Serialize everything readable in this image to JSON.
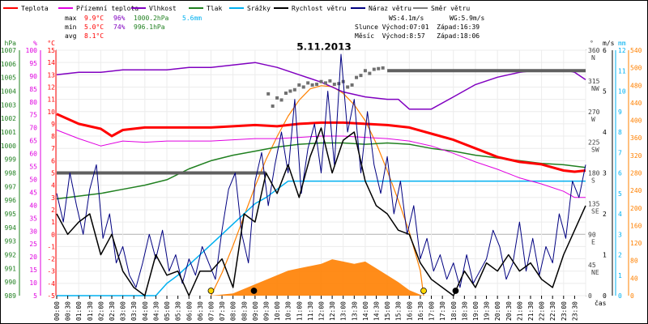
{
  "chart_data": {
    "type": "line",
    "title": "5.11.2013",
    "xlabel": "čas",
    "legend": [
      {
        "name": "Teplota",
        "color": "#ff0000"
      },
      {
        "name": "Přízemní teplota",
        "color": "#e000e0"
      },
      {
        "name": "Vlhkost",
        "color": "#8000c0"
      },
      {
        "name": "Tlak",
        "color": "#208020"
      },
      {
        "name": "Srážky",
        "color": "#00b0f0"
      },
      {
        "name": "Rychlost větru",
        "color": "#000000"
      },
      {
        "name": "Náraz větru",
        "color": "#000080"
      },
      {
        "name": "Směr větru",
        "color": "#808080"
      }
    ],
    "stats": {
      "rows": [
        {
          "label": "max",
          "temp": "9.9°C",
          "hum": "96%",
          "press": "1000.2hPa",
          "rain": "5.6mm"
        },
        {
          "label": "min",
          "temp": "5.0°C",
          "hum": "74%",
          "press": "996.1hPa",
          "rain": ""
        },
        {
          "label": "avg",
          "temp": "8.1°C",
          "hum": "",
          "press": "",
          "rain": ""
        }
      ],
      "wind": "WS:4.1m/s",
      "gust": "WG:5.9m/s",
      "sun": "Slunce Východ:07:01  Západ:16:39",
      "moon": "Měsíc  Východ:8:57   Západ:18:06"
    },
    "axes": {
      "hpa": {
        "label": "hPa",
        "ticks": [
          "1007",
          "1006",
          "1005",
          "1004",
          "1003",
          "1002",
          "1001",
          "1000",
          "999",
          "998",
          "997",
          "996",
          "995",
          "994",
          "993",
          "992",
          "991",
          "990",
          "989"
        ],
        "range": [
          989,
          1007
        ],
        "color": "#208020"
      },
      "pct": {
        "label": "%",
        "ticks": [
          "100",
          "95",
          "90",
          "85",
          "80",
          "75",
          "70",
          "65",
          "60",
          "55",
          "50",
          "45",
          "40",
          "35",
          "30",
          "25",
          "20",
          "15",
          "10",
          "5"
        ],
        "range": [
          0,
          100
        ],
        "color": "#e000e0"
      },
      "temp": {
        "label": "°C",
        "ticks": [
          "15",
          "14",
          "13",
          "12",
          "11",
          "10",
          "9",
          "8",
          "7",
          "6",
          "5",
          "4",
          "3",
          "2",
          "1",
          "0",
          "-1",
          "-2",
          "-3",
          "-4",
          "-5"
        ],
        "range": [
          -5,
          15
        ],
        "color": "#ff0000"
      },
      "dir": {
        "label": "°",
        "ticks": [
          {
            "v": 360,
            "t": "360",
            "d": "N"
          },
          {
            "v": 315,
            "t": "315",
            "d": "NW"
          },
          {
            "v": 270,
            "t": "270",
            "d": "W"
          },
          {
            "v": 225,
            "t": "225",
            "d": "SW"
          },
          {
            "v": 180,
            "t": "180",
            "d": "S"
          },
          {
            "v": 135,
            "t": "135",
            "d": "SE"
          },
          {
            "v": 90,
            "t": "90",
            "d": "E"
          },
          {
            "v": 45,
            "t": "45",
            "d": "NE"
          },
          {
            "v": 0,
            "t": "0",
            "d": ""
          }
        ],
        "range": [
          0,
          360
        ],
        "color": "#404040"
      },
      "wind": {
        "label": "m/s",
        "ticks": [
          "6",
          "5",
          "4",
          "3",
          "2",
          "1",
          "0"
        ],
        "range": [
          0,
          6
        ],
        "color": "#000000"
      },
      "rain": {
        "label": "mm",
        "ticks": [
          "12",
          "11",
          "10",
          "9",
          "8",
          "7",
          "6",
          "5",
          "4",
          "3",
          "2",
          "1",
          "0"
        ],
        "range": [
          0,
          12
        ],
        "color": "#00b0f0"
      },
      "solar": {
        "label": "",
        "ticks": [
          "540",
          "500",
          "480",
          "440",
          "400",
          "360",
          "320",
          "280",
          "240",
          "200",
          "160",
          "120",
          "80",
          "40",
          "0"
        ],
        "range": [
          0,
          540
        ],
        "color": "#ff8000"
      }
    },
    "x_ticks": [
      "00:00",
      "00:30",
      "01:00",
      "01:30",
      "02:00",
      "02:30",
      "03:00",
      "03:30",
      "04:00",
      "04:30",
      "05:00",
      "05:30",
      "06:00",
      "06:30",
      "07:00",
      "07:30",
      "08:00",
      "08:30",
      "09:00",
      "09:30",
      "10:00",
      "10:30",
      "11:00",
      "11:30",
      "12:00",
      "12:30",
      "13:00",
      "13:30",
      "14:00",
      "14:30",
      "15:00",
      "15:30",
      "16:00",
      "16:30",
      "17:00",
      "17:30",
      "18:00",
      "18:30",
      "19:00",
      "19:30",
      "20:00",
      "20:30",
      "21:00",
      "21:30",
      "22:00",
      "22:30",
      "23:00",
      "23:30"
    ],
    "series": {
      "teplota": {
        "x": [
          0,
          1,
          2,
          2.5,
          3,
          4,
          5,
          6,
          7,
          8,
          9,
          10,
          11,
          12,
          13,
          14,
          15,
          16,
          17,
          18,
          19,
          20,
          21,
          22,
          23,
          23.5,
          24
        ],
        "y": [
          9.8,
          9.0,
          8.6,
          8.0,
          8.5,
          8.7,
          8.7,
          8.7,
          8.7,
          8.8,
          8.9,
          8.8,
          9.0,
          9.1,
          9.1,
          9.0,
          8.9,
          8.7,
          8.2,
          7.7,
          7.0,
          6.3,
          5.9,
          5.7,
          5.2,
          5.1,
          5.2
        ]
      },
      "prizemni": {
        "x": [
          0,
          1,
          2,
          3,
          4,
          5,
          6,
          7,
          8,
          9,
          10,
          11,
          12,
          13,
          14,
          15,
          16,
          17,
          18,
          19,
          20,
          21,
          22,
          23,
          23.5,
          24
        ],
        "y": [
          8.5,
          7.8,
          7.2,
          7.6,
          7.5,
          7.6,
          7.6,
          7.6,
          7.7,
          7.8,
          7.8,
          7.9,
          8.0,
          8.0,
          7.9,
          7.8,
          7.6,
          7.2,
          6.6,
          5.9,
          5.3,
          4.6,
          4.1,
          3.5,
          3.0,
          3.0
        ]
      },
      "vlhkost": {
        "x": [
          0,
          1,
          2,
          3,
          4,
          5,
          6,
          7,
          8,
          9,
          10,
          11,
          12,
          13,
          14,
          15,
          15.5,
          16,
          17,
          18,
          19,
          20,
          21,
          22,
          23,
          23.5,
          24
        ],
        "y": [
          90,
          91,
          91,
          92,
          92,
          92,
          93,
          93,
          94,
          95,
          93,
          90,
          87,
          83,
          81,
          80,
          80,
          76,
          76,
          81,
          86,
          89,
          91,
          92,
          92,
          91,
          88
        ]
      },
      "tlak": {
        "x": [
          0,
          1,
          2,
          3,
          4,
          5,
          6,
          7,
          8,
          9,
          10,
          11,
          12,
          13,
          14,
          15,
          16,
          17,
          18,
          19,
          20,
          21,
          22,
          23,
          24
        ],
        "y": [
          996.1,
          996.3,
          996.5,
          996.8,
          997.1,
          997.5,
          998.3,
          998.9,
          999.3,
          999.6,
          999.9,
          1000.1,
          1000.2,
          1000.2,
          1000.1,
          1000.2,
          1000.1,
          999.8,
          999.6,
          999.3,
          999.1,
          998.9,
          998.7,
          998.6,
          998.4
        ]
      },
      "srazky": {
        "x": [
          0,
          4.5,
          5,
          5.5,
          6,
          6.5,
          7,
          7.5,
          8,
          8.5,
          9,
          9.5,
          10,
          10.5,
          11,
          24
        ],
        "y": [
          0,
          0,
          0.6,
          1.0,
          1.5,
          2.0,
          2.5,
          3.0,
          3.5,
          4.0,
          4.5,
          4.8,
          5.2,
          5.6,
          5.6,
          5.6
        ]
      },
      "smer_segments": [
        {
          "x": [
            0,
            9.5
          ],
          "y": [
            180,
            180
          ]
        },
        {
          "x": [
            15,
            24
          ],
          "y": [
            330,
            330
          ]
        }
      ],
      "smer_points": {
        "x": [
          9.6,
          9.8,
          10.0,
          10.2,
          10.4,
          10.6,
          10.8,
          11.0,
          11.2,
          11.4,
          11.6,
          11.8,
          12.0,
          12.2,
          12.4,
          12.6,
          12.8,
          13.0,
          13.2,
          13.4,
          13.6,
          13.8,
          14.0,
          14.2,
          14.4,
          14.6,
          14.8
        ],
        "y": [
          296,
          278,
          290,
          287,
          297,
          300,
          302,
          309,
          306,
          312,
          309,
          310,
          314,
          312,
          315,
          310,
          311,
          314,
          306,
          309,
          320,
          323,
          330,
          326,
          332,
          333,
          334
        ]
      },
      "rychlost": {
        "x": [
          0,
          0.5,
          1,
          1.5,
          2,
          2.5,
          3,
          3.5,
          4,
          4.5,
          5,
          5.5,
          6,
          6.5,
          7,
          7.5,
          8,
          8.5,
          9,
          9.5,
          10,
          10.5,
          11,
          11.5,
          12,
          12.5,
          13,
          13.5,
          14,
          14.5,
          15,
          15.5,
          16,
          16.5,
          17,
          17.5,
          18,
          18.5,
          19,
          19.5,
          20,
          20.5,
          21,
          21.5,
          22,
          22.5,
          23,
          23.5,
          24
        ],
        "y": [
          2.0,
          1.5,
          1.8,
          2.0,
          1.0,
          1.5,
          0.6,
          0.2,
          0,
          1.0,
          0.5,
          0.6,
          0,
          0.6,
          0.6,
          0.9,
          0.2,
          2.0,
          1.8,
          3.0,
          2.5,
          3.2,
          2.4,
          3.4,
          4.1,
          3.0,
          3.8,
          4.0,
          2.8,
          2.2,
          2.0,
          1.6,
          1.5,
          0.8,
          0.4,
          0.2,
          0,
          0.6,
          0.2,
          0.8,
          0.6,
          1.0,
          0.6,
          0.8,
          0.4,
          0.2,
          1.0,
          1.6,
          2.2
        ]
      },
      "naraz": {
        "x": [
          0,
          0.3,
          0.6,
          0.9,
          1.2,
          1.5,
          1.8,
          2.1,
          2.4,
          2.7,
          3,
          3.3,
          3.6,
          3.9,
          4.2,
          4.5,
          4.8,
          5.1,
          5.4,
          5.7,
          6,
          6.3,
          6.6,
          6.9,
          7.2,
          7.5,
          7.8,
          8.1,
          8.4,
          8.7,
          9,
          9.3,
          9.6,
          9.9,
          10.2,
          10.5,
          10.8,
          11.1,
          11.4,
          11.7,
          12,
          12.3,
          12.6,
          12.9,
          13.2,
          13.5,
          13.8,
          14.1,
          14.4,
          14.7,
          15,
          15.3,
          15.6,
          15.9,
          16.2,
          16.5,
          16.8,
          17.1,
          17.4,
          17.7,
          18,
          18.3,
          18.6,
          18.9,
          19.2,
          19.5,
          19.8,
          20.1,
          20.4,
          20.7,
          21,
          21.3,
          21.6,
          21.9,
          22.2,
          22.5,
          22.8,
          23.1,
          23.4,
          23.7,
          24
        ],
        "y": [
          2.5,
          1.8,
          3.0,
          2.2,
          1.5,
          2.6,
          3.2,
          1.4,
          2.0,
          0.8,
          1.2,
          0.5,
          0.2,
          0.8,
          1.5,
          0.9,
          1.6,
          0.6,
          1.0,
          0.3,
          0.9,
          0.5,
          1.2,
          0.8,
          0.4,
          1.6,
          2.6,
          3.0,
          1.5,
          0.8,
          2.8,
          3.5,
          2.2,
          3.2,
          4.0,
          3.0,
          4.8,
          2.5,
          3.6,
          4.2,
          3.0,
          5.0,
          3.2,
          5.9,
          4.0,
          4.8,
          3.0,
          4.5,
          3.2,
          2.5,
          3.4,
          2.0,
          2.8,
          1.5,
          2.2,
          0.9,
          1.4,
          0.6,
          1.0,
          0.4,
          0.8,
          0.2,
          1.0,
          0.3,
          0.6,
          0.9,
          1.6,
          1.2,
          0.4,
          0.8,
          1.8,
          0.6,
          1.4,
          0.5,
          1.2,
          0.8,
          2.0,
          1.4,
          2.8,
          2.4,
          3.2
        ]
      },
      "slunce": {
        "x": [
          7.0,
          7.5,
          8,
          8.5,
          9,
          9.5,
          10,
          10.5,
          11,
          11.5,
          12,
          12.5,
          13,
          13.5,
          14,
          14.5,
          15,
          15.5,
          16,
          16.5,
          16.65
        ],
        "y": [
          0,
          50,
          110,
          175,
          240,
          300,
          350,
          395,
          430,
          455,
          462,
          460,
          445,
          420,
          385,
          335,
          275,
          210,
          140,
          55,
          0
        ]
      },
      "zareni": {
        "x": [
          7,
          8,
          8.5,
          9,
          9.5,
          10,
          10.5,
          11,
          11.5,
          12,
          12.5,
          13,
          13.5,
          14,
          14.5,
          15,
          15.5,
          16,
          16.6
        ],
        "y": [
          0,
          5,
          15,
          25,
          35,
          45,
          55,
          60,
          65,
          70,
          80,
          75,
          70,
          75,
          60,
          45,
          30,
          12,
          0
        ]
      }
    },
    "markers": [
      {
        "x": 7.0,
        "type": "sunrise",
        "color": "#ffd700"
      },
      {
        "x": 8.95,
        "type": "moonrise",
        "color": "#000000"
      },
      {
        "x": 16.65,
        "type": "sunset",
        "color": "#ffd700"
      },
      {
        "x": 18.1,
        "type": "moonset",
        "color": "#000000"
      }
    ]
  }
}
